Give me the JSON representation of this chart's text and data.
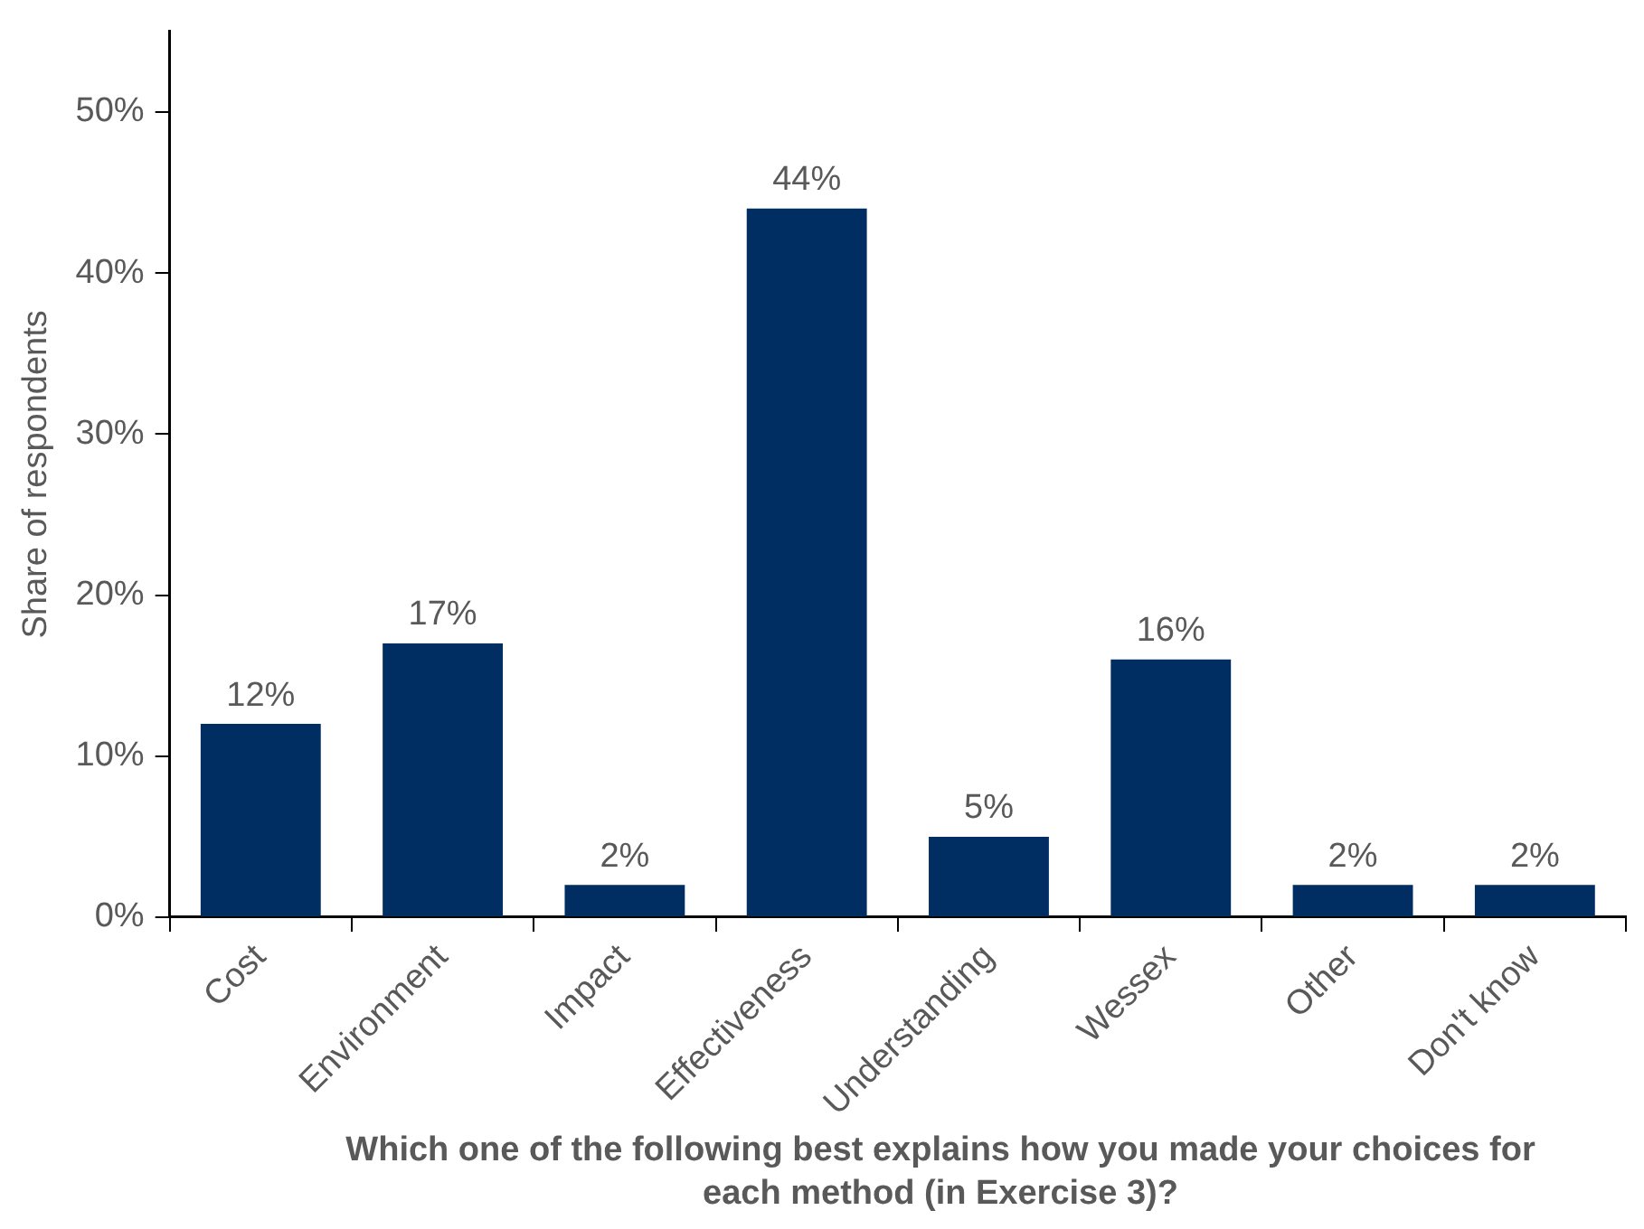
{
  "chart_data": {
    "type": "bar",
    "xlabel": "Which one of the following best explains how you made your choices for each method (in Exercise 3)?",
    "ylabel": "Share of respondents",
    "categories": [
      "Cost",
      "Environment",
      "Impact",
      "Effectiveness",
      "Understanding",
      "Wessex",
      "Other",
      "Don't know"
    ],
    "values": [
      12,
      17,
      2,
      44,
      5,
      16,
      2,
      2
    ],
    "color": "#002d62",
    "data_labels": true,
    "value_labels": [
      "12%",
      "17%",
      "2%",
      "44%",
      "5%",
      "16%",
      "2%",
      "2%"
    ],
    "ylim": [
      0,
      55
    ],
    "yticks": [
      {
        "value": 0,
        "label": "0%"
      },
      {
        "value": 10,
        "label": "10%"
      },
      {
        "value": 20,
        "label": "20%"
      },
      {
        "value": 30,
        "label": "30%"
      },
      {
        "value": 40,
        "label": "40%"
      },
      {
        "value": 50,
        "label": "50%"
      }
    ],
    "grid": false,
    "legend": false
  }
}
